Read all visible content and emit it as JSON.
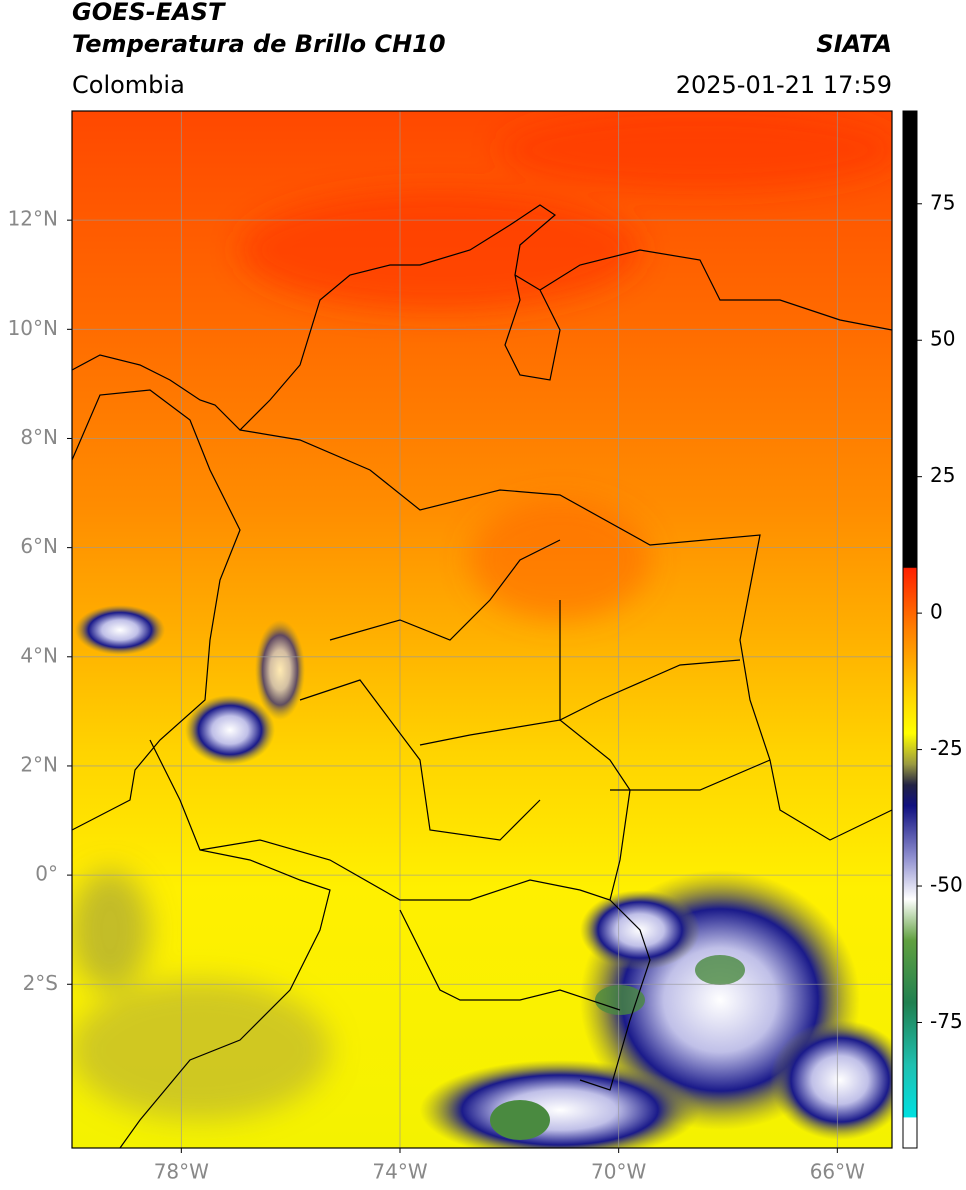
{
  "header": {
    "satellite": "GOES-EAST",
    "product": "Temperatura de Brillo CH10",
    "region": "Colombia",
    "source": "SIATA",
    "timestamp": "2025-01-21 17:59"
  },
  "map": {
    "xlim": [
      -80,
      -65
    ],
    "ylim": [
      -5,
      14
    ],
    "xticks": [
      {
        "value": -78,
        "label": "78°W"
      },
      {
        "value": -74,
        "label": "74°W"
      },
      {
        "value": -70,
        "label": "70°W"
      },
      {
        "value": -66,
        "label": "66°W"
      }
    ],
    "yticks": [
      {
        "value": 12,
        "label": "12°N"
      },
      {
        "value": 10,
        "label": "10°N"
      },
      {
        "value": 8,
        "label": "8°N"
      },
      {
        "value": 6,
        "label": "6°N"
      },
      {
        "value": 4,
        "label": "4°N"
      },
      {
        "value": 2,
        "label": "2°N"
      },
      {
        "value": 0,
        "label": "0°"
      },
      {
        "value": -2,
        "label": "2°S"
      }
    ],
    "grid": true
  },
  "colorbar": {
    "lim": [
      -98,
      92
    ],
    "ticks": [
      75,
      50,
      25,
      0,
      -25,
      -50,
      -75
    ]
  }
}
